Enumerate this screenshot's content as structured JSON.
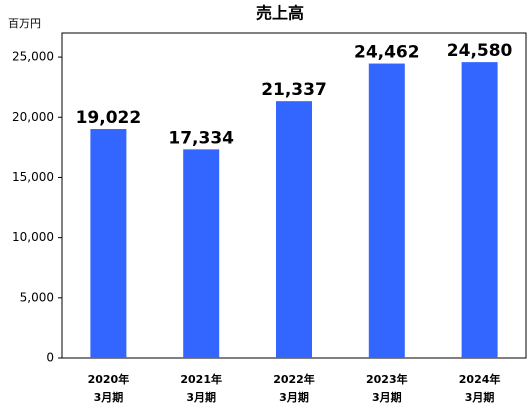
{
  "chart_data": {
    "type": "bar",
    "title": "売上高",
    "y_unit_label": "百万円",
    "categories": [
      [
        "2020年",
        "3月期"
      ],
      [
        "2021年",
        "3月期"
      ],
      [
        "2022年",
        "3月期"
      ],
      [
        "2023年",
        "3月期"
      ],
      [
        "2024年",
        "3月期"
      ]
    ],
    "values": [
      19022,
      17334,
      21337,
      24462,
      24580
    ],
    "value_labels": [
      "19,022",
      "17,334",
      "21,337",
      "24,462",
      "24,580"
    ],
    "color": "#3366ff",
    "ylim": [
      0,
      27000
    ],
    "yticks": [
      0,
      {
        "value": 5000,
        "label": "5,000"
      },
      {
        "value": 10000,
        "label": "10,000"
      },
      {
        "value": 15000,
        "label": "15,000"
      },
      {
        "value": 20000,
        "label": "20,000"
      },
      {
        "value": 25000,
        "label": "25,000"
      }
    ],
    "grid": false
  }
}
